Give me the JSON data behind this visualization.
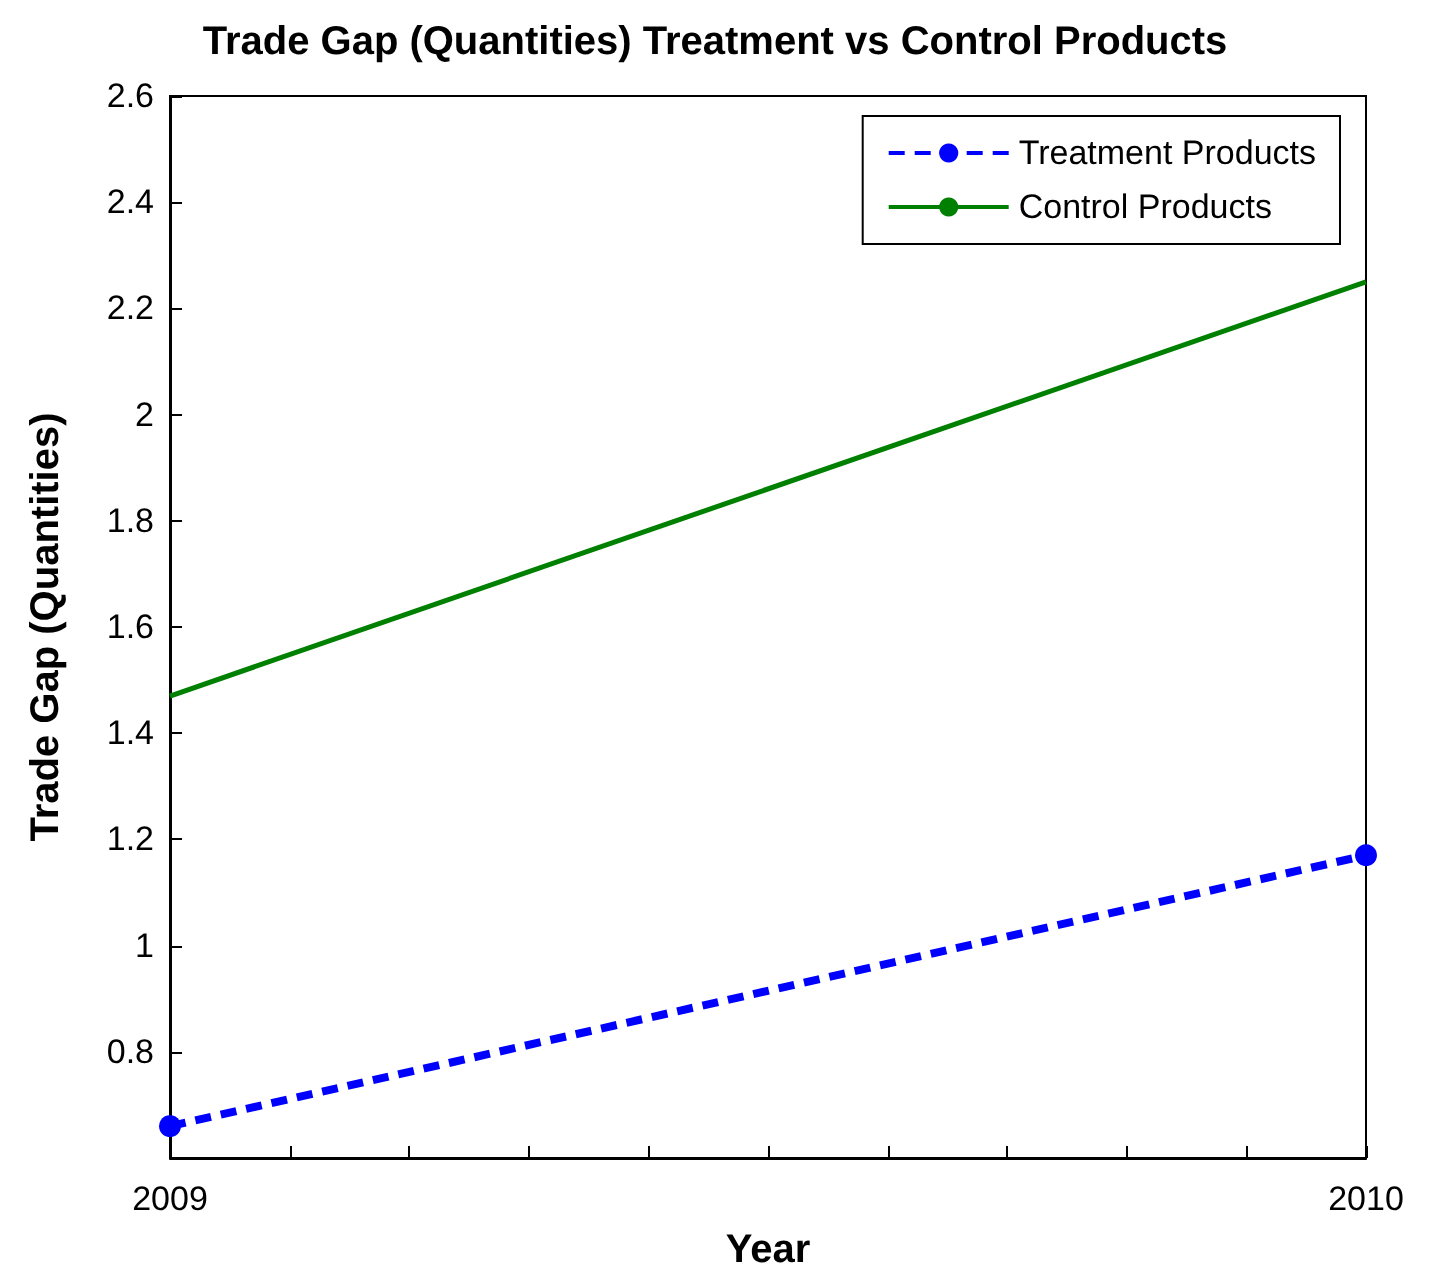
{
  "chart_data": {
    "type": "line",
    "title": "Trade Gap (Quantities) Treatment vs Control Products",
    "xlabel": "Year",
    "ylabel": "Trade Gap (Quantities)",
    "x": [
      2009,
      2010
    ],
    "series": [
      {
        "name": "Treatment Products",
        "color": "#0000ff",
        "values": [
          0.66,
          1.17
        ],
        "marker": "circle",
        "line_style": "dashed"
      },
      {
        "name": "Control Products",
        "color": "#008000",
        "values": [
          1.47,
          2.25
        ],
        "marker": "none",
        "line_style": "solid"
      }
    ],
    "xlim": [
      2009,
      2010
    ],
    "xticks": [
      2009,
      {
        "value": 2009.1,
        "label": null
      },
      {
        "value": 2009.2,
        "label": null
      },
      {
        "value": 2009.3,
        "label": null
      },
      {
        "value": 2009.4,
        "label": null
      },
      {
        "value": 2009.5,
        "label": null
      },
      {
        "value": 2009.6,
        "label": null
      },
      {
        "value": 2009.7,
        "label": null
      },
      {
        "value": 2009.8,
        "label": null
      },
      {
        "value": 2009.9,
        "label": null
      },
      2010
    ],
    "ylim": [
      0.6,
      2.6
    ],
    "yticks": [
      0.8,
      1,
      1.2,
      1.4,
      1.6,
      1.8,
      2,
      2.2,
      2.4,
      2.6
    ],
    "grid": false,
    "legend": "top right"
  }
}
